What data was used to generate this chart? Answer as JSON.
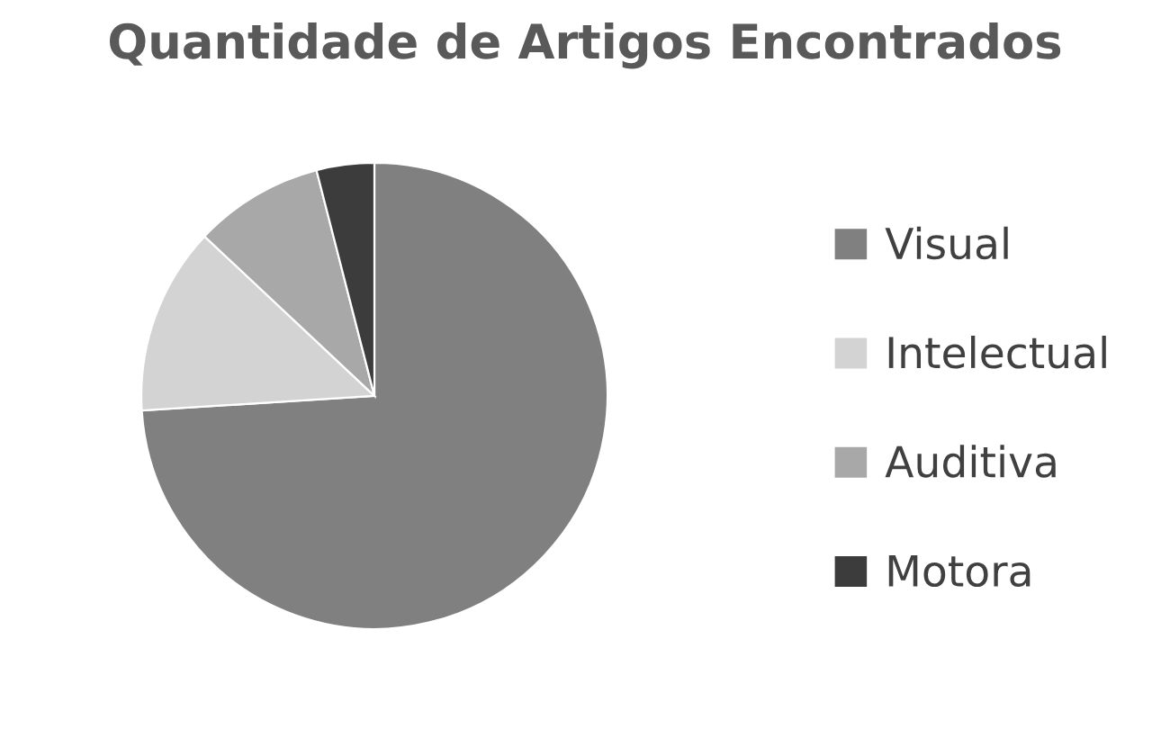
{
  "chart_data": {
    "type": "pie",
    "title": "Quantidade de Artigos Encontrados",
    "categories": [
      "Visual",
      "Intelectual",
      "Auditiva",
      "Motora"
    ],
    "values": [
      74,
      13,
      9,
      4
    ],
    "colors": [
      "#808080",
      "#d3d3d3",
      "#a8a8a8",
      "#3c3c3c"
    ],
    "legend": "right"
  }
}
